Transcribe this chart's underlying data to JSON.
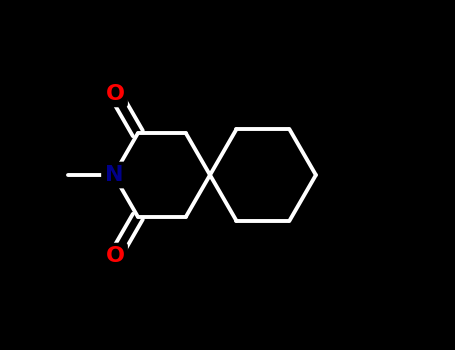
{
  "background_color": "#000000",
  "bond_line_color": "#ffffff",
  "N_color": "#00008b",
  "O_color": "#ff0000",
  "N_label": "N",
  "O_label": "O",
  "line_width": 2.8,
  "font_size_atom": 15,
  "fig_width": 4.55,
  "fig_height": 3.5,
  "dpi": 100,
  "xlim": [
    -2.2,
    2.8
  ],
  "ylim": [
    -2.0,
    2.0
  ]
}
